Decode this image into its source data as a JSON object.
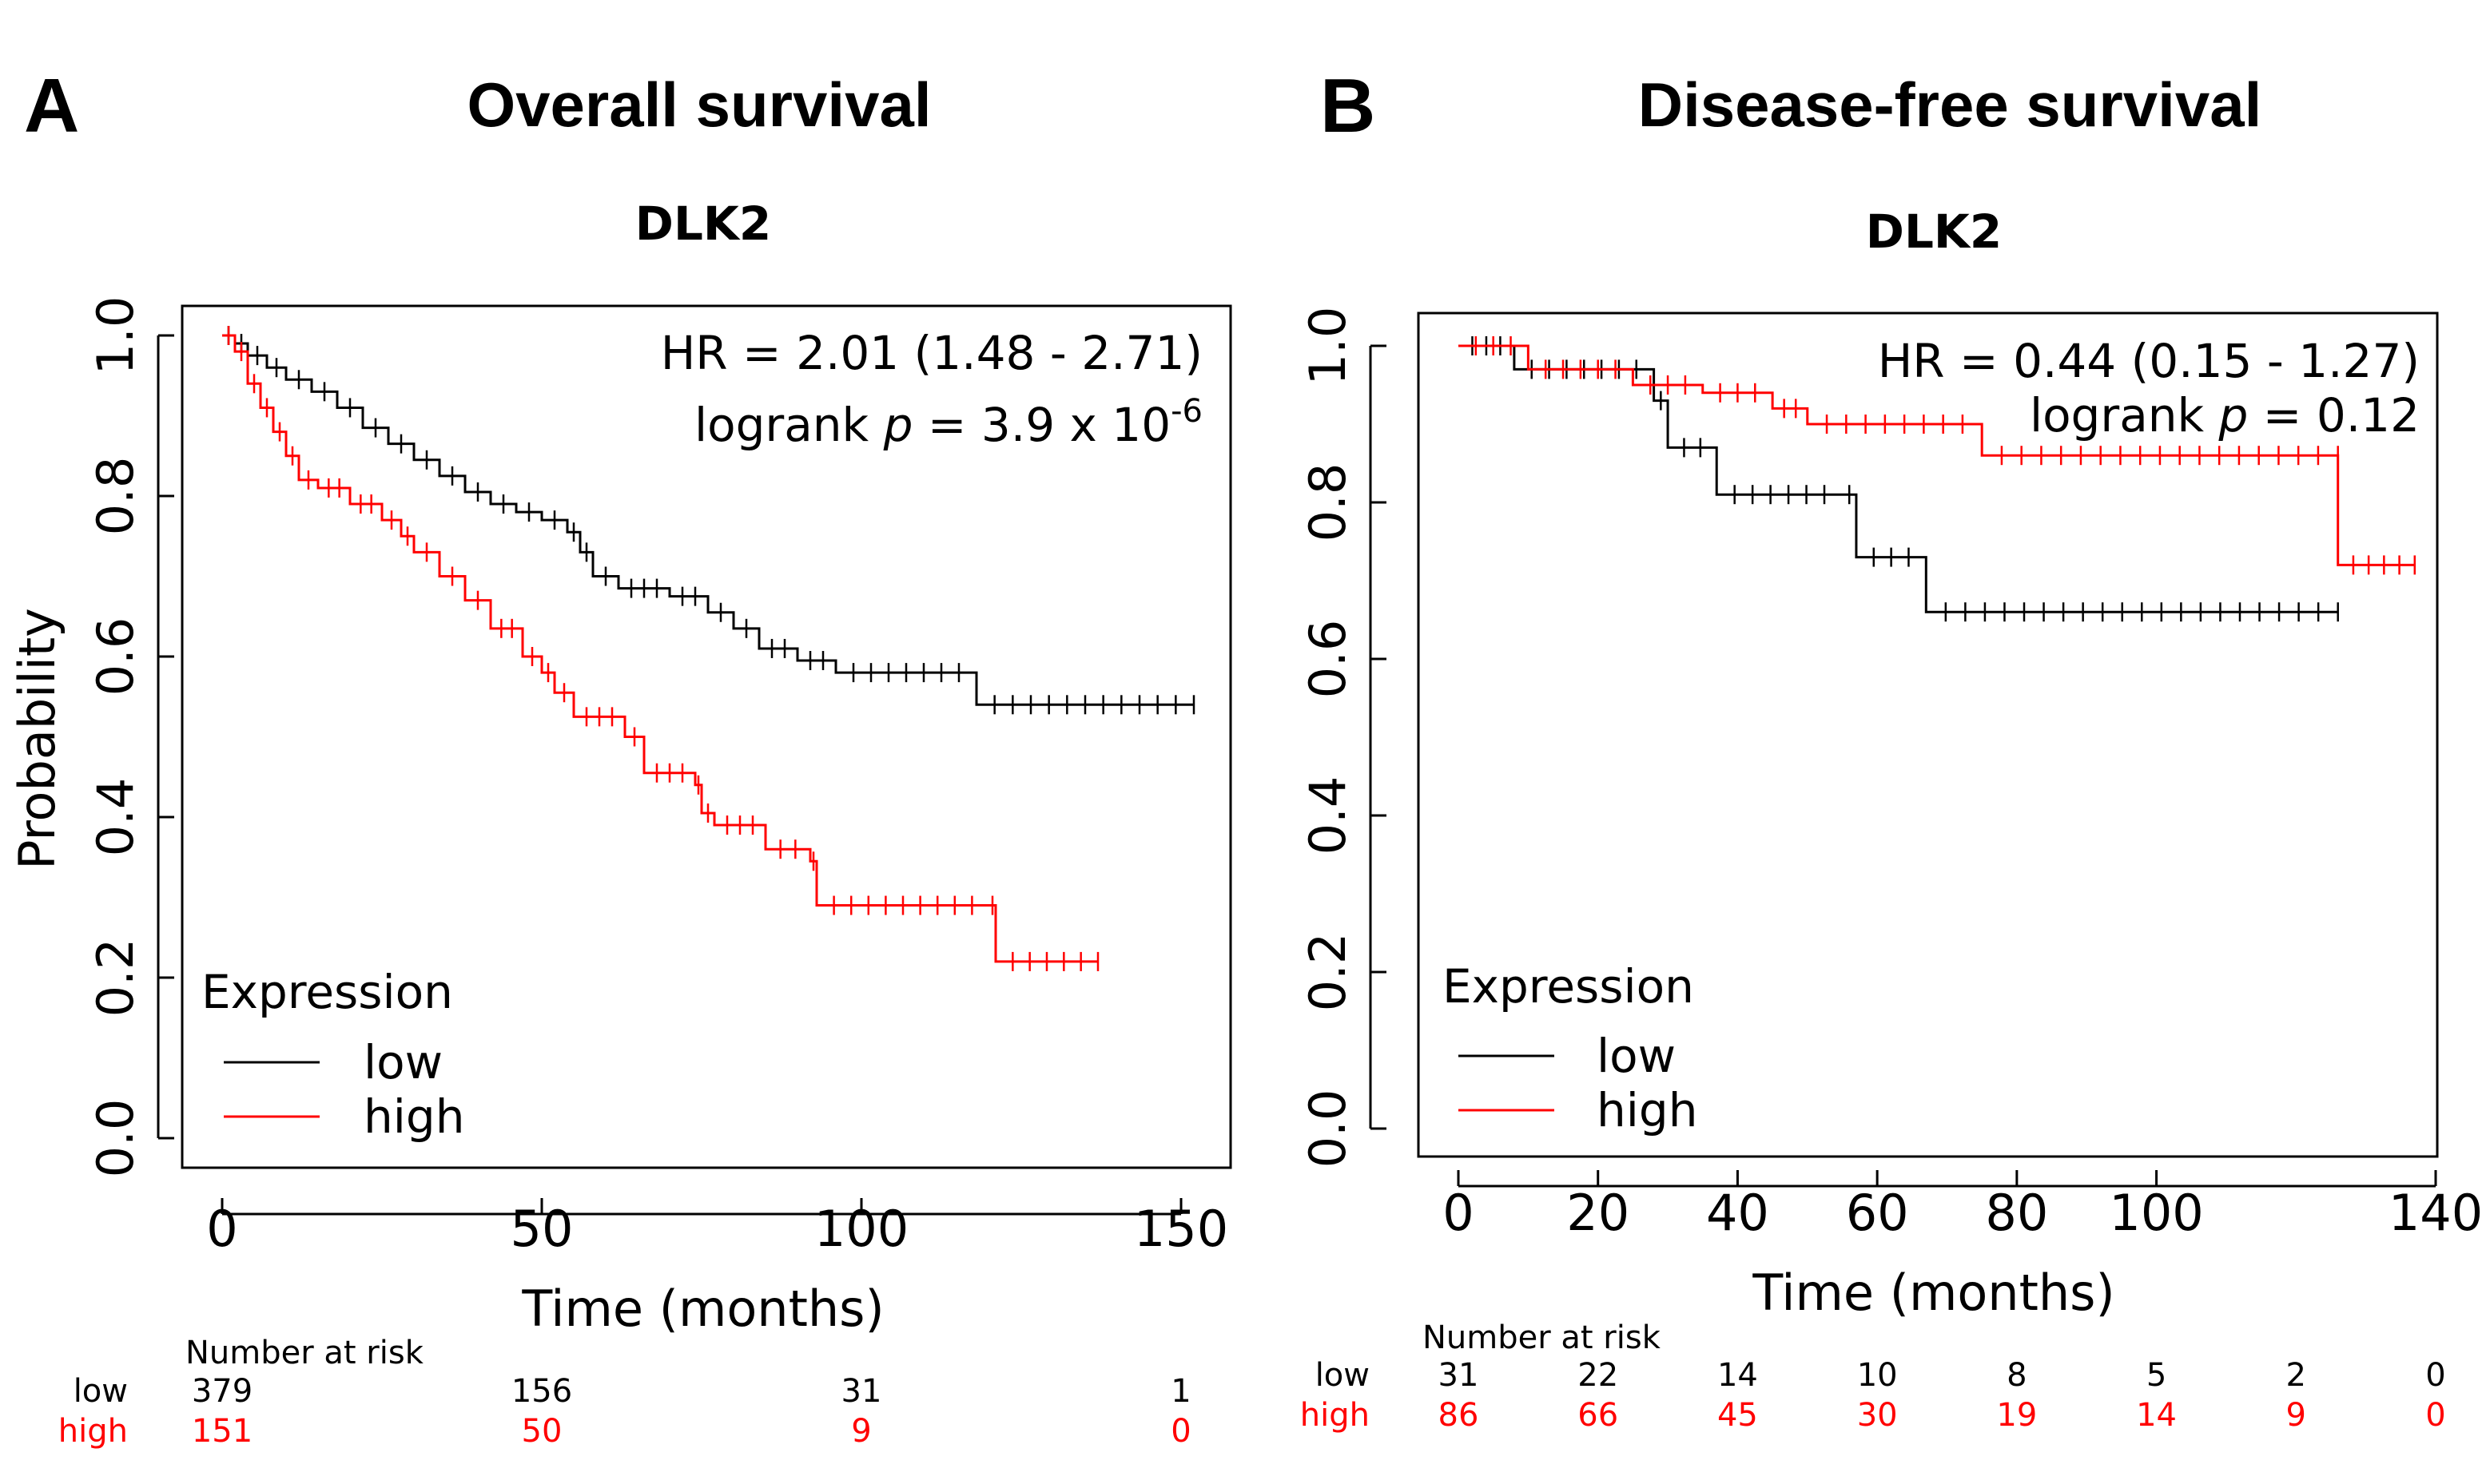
{
  "colors": {
    "low": "#000000",
    "high": "#ff0000"
  },
  "chart_data": [
    {
      "type": "line",
      "panel": "A",
      "heading": "Overall survival",
      "title": "DLK2",
      "xlabel": "Time (months)",
      "ylabel": "Probability",
      "xlim": [
        0,
        150
      ],
      "ylim": [
        0,
        1
      ],
      "xticks": [
        0,
        50,
        100,
        150
      ],
      "yticks": [
        0.0,
        0.2,
        0.4,
        0.6,
        0.8,
        1.0
      ],
      "ytick_labels": [
        "0.0",
        "0.2",
        "0.4",
        "0.6",
        "0.8",
        "1.0"
      ],
      "hr_text": "HR = 2.01 (1.48 - 2.71)",
      "logrank_prefix": "logrank ",
      "logrank_p": "p",
      "logrank_value": " = 3.9 x 10",
      "logrank_exp": "-6",
      "legend_title": "Expression",
      "legend_position": "bottom-left",
      "series": [
        {
          "name": "low",
          "steps": [
            [
              0,
              1.0
            ],
            [
              2,
              0.99
            ],
            [
              4,
              0.975
            ],
            [
              7,
              0.96
            ],
            [
              10,
              0.945
            ],
            [
              14,
              0.93
            ],
            [
              18,
              0.91
            ],
            [
              22,
              0.885
            ],
            [
              26,
              0.865
            ],
            [
              30,
              0.845
            ],
            [
              34,
              0.825
            ],
            [
              38,
              0.805
            ],
            [
              42,
              0.79
            ],
            [
              46,
              0.78
            ],
            [
              50,
              0.77
            ],
            [
              54,
              0.755
            ],
            [
              56,
              0.73
            ],
            [
              58,
              0.7
            ],
            [
              62,
              0.685
            ],
            [
              70,
              0.675
            ],
            [
              76,
              0.655
            ],
            [
              80,
              0.635
            ],
            [
              84,
              0.61
            ],
            [
              90,
              0.595
            ],
            [
              96,
              0.58
            ],
            [
              118,
              0.54
            ],
            [
              152,
              0.54
            ]
          ]
        },
        {
          "name": "high",
          "steps": [
            [
              0,
              1.0
            ],
            [
              2,
              0.98
            ],
            [
              4,
              0.94
            ],
            [
              6,
              0.91
            ],
            [
              8,
              0.88
            ],
            [
              10,
              0.85
            ],
            [
              12,
              0.82
            ],
            [
              15,
              0.81
            ],
            [
              20,
              0.79
            ],
            [
              25,
              0.77
            ],
            [
              28,
              0.75
            ],
            [
              30,
              0.73
            ],
            [
              34,
              0.7
            ],
            [
              38,
              0.67
            ],
            [
              42,
              0.635
            ],
            [
              47,
              0.6
            ],
            [
              50,
              0.58
            ],
            [
              52,
              0.555
            ],
            [
              55,
              0.525
            ],
            [
              63,
              0.5
            ],
            [
              66,
              0.455
            ],
            [
              74,
              0.44
            ],
            [
              75,
              0.405
            ],
            [
              77,
              0.39
            ],
            [
              85,
              0.36
            ],
            [
              92,
              0.345
            ],
            [
              93,
              0.29
            ],
            [
              120,
              0.29
            ],
            [
              121,
              0.22
            ],
            [
              137,
              0.22
            ]
          ]
        }
      ],
      "risk_table": {
        "header": "Number at risk",
        "times": [
          0,
          50,
          100,
          150
        ],
        "rows": [
          {
            "label": "low",
            "values": [
              "379",
              "156",
              "31",
              "1"
            ]
          },
          {
            "label": "high",
            "values": [
              "151",
              "50",
              "9",
              "0"
            ]
          }
        ]
      }
    },
    {
      "type": "line",
      "panel": "B",
      "heading": "Disease-free survival",
      "title": "DLK2",
      "xlabel": "Time (months)",
      "ylabel": "",
      "xlim": [
        0,
        140
      ],
      "ylim": [
        0,
        1
      ],
      "xticks": [
        0,
        20,
        40,
        60,
        80,
        100,
        140
      ],
      "yticks": [
        0.0,
        0.2,
        0.4,
        0.6,
        0.8,
        1.0
      ],
      "ytick_labels": [
        "0.0",
        "0.2",
        "0.4",
        "0.6",
        "0.8",
        "1.0"
      ],
      "hr_text": "HR = 0.44 (0.15 - 1.27)",
      "logrank_prefix": "logrank ",
      "logrank_p": "p",
      "logrank_value": " = 0.12",
      "logrank_exp": "",
      "legend_title": "Expression",
      "legend_position": "bottom-left",
      "series": [
        {
          "name": "low",
          "steps": [
            [
              0,
              1.0
            ],
            [
              8,
              0.97
            ],
            [
              28,
              0.93
            ],
            [
              30,
              0.87
            ],
            [
              37,
              0.81
            ],
            [
              55,
              0.81
            ],
            [
              57,
              0.73
            ],
            [
              67,
              0.66
            ],
            [
              126,
              0.66
            ]
          ]
        },
        {
          "name": "high",
          "steps": [
            [
              0,
              1.0
            ],
            [
              10,
              0.97
            ],
            [
              25,
              0.95
            ],
            [
              35,
              0.94
            ],
            [
              45,
              0.92
            ],
            [
              50,
              0.9
            ],
            [
              75,
              0.86
            ],
            [
              126,
              0.86
            ],
            [
              126,
              0.72
            ],
            [
              137,
              0.72
            ]
          ]
        }
      ],
      "risk_table": {
        "header": "Number at risk",
        "times": [
          0,
          20,
          40,
          60,
          80,
          100,
          120,
          140
        ],
        "rows": [
          {
            "label": "low",
            "values": [
              "31",
              "22",
              "14",
              "10",
              "8",
              "5",
              "2",
              "0"
            ]
          },
          {
            "label": "high",
            "values": [
              "86",
              "66",
              "45",
              "30",
              "19",
              "14",
              "9",
              "0"
            ]
          }
        ]
      }
    }
  ]
}
